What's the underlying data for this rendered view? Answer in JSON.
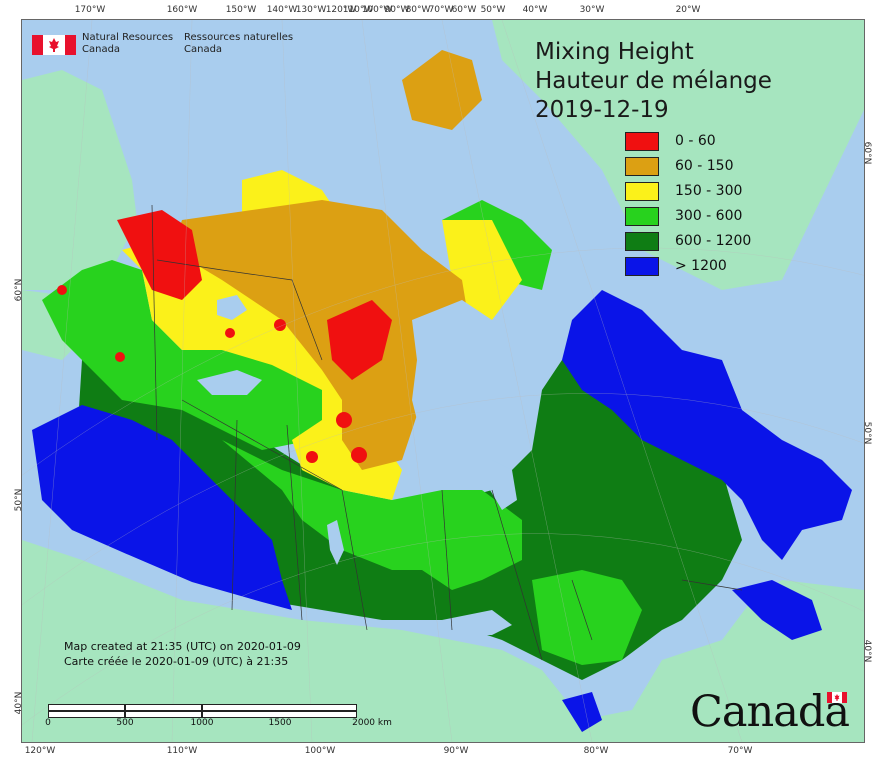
{
  "title": {
    "line1": "Mixing Height",
    "line2": "Hauteur de mélange",
    "date": "2019-12-19"
  },
  "agency": {
    "name_en_line1": "Natural Resources",
    "name_en_line2": "Canada",
    "name_fr_line1": "Ressources naturelles",
    "name_fr_line2": "Canada"
  },
  "legend": [
    {
      "label": "0 - 60",
      "color": "#f01010"
    },
    {
      "label": "60 - 150",
      "color": "#dca013"
    },
    {
      "label": "150 - 300",
      "color": "#fbf11a"
    },
    {
      "label": "300 - 600",
      "color": "#28d21e"
    },
    {
      "label": "600 - 1200",
      "color": "#0f7d14"
    },
    {
      "label": "> 1200",
      "color": "#0a14e8"
    }
  ],
  "credits": {
    "line_en": "Map created at 21:35 (UTC) on 2020-01-09",
    "line_fr": "Carte créée le 2020-01-09 (UTC) à 21:35"
  },
  "scale_bar": {
    "labels": [
      "0",
      "500",
      "1000",
      "1500",
      "2000 km"
    ]
  },
  "graticule": {
    "top_lon": [
      "170°W",
      "160°W",
      "150°W",
      "140°W",
      "130°W",
      "120°W",
      "110°W",
      "100°W",
      "90°W",
      "80°W",
      "70°W",
      "60°W",
      "50°W",
      "40°W",
      "30°W",
      "20°W"
    ],
    "bottom_lon": [
      "120°W",
      "110°W",
      "100°W",
      "90°W",
      "80°W",
      "70°W"
    ],
    "left_lat": [
      "60°N",
      "50°N",
      "40°N"
    ],
    "right_lat": [
      "60°N",
      "50°N",
      "40°N"
    ]
  },
  "wordmark": "Canada",
  "colors": {
    "ocean": "#a9cdee",
    "land_outside": "#a6e5bf",
    "lakes": "#a9cdee",
    "borders": "#333333",
    "flag_red": "#e8112d"
  }
}
